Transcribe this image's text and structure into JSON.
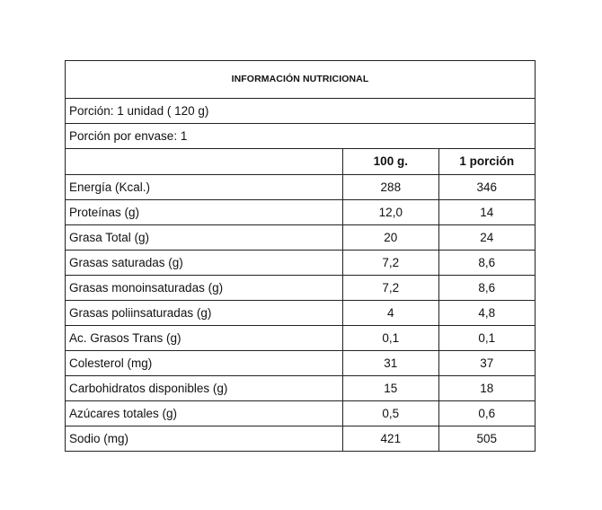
{
  "table": {
    "title": "INFORMACIÓN NUTRICIONAL",
    "portion": "Porción: 1 unidad ( 120 g)",
    "portions_per_package": "Porción por envase: 1",
    "columns": [
      "100 g.",
      "1 porción"
    ],
    "rows": [
      {
        "name": "Energía (Kcal.)",
        "per100g": "288",
        "perPortion": "346"
      },
      {
        "name": "Proteínas (g)",
        "per100g": "12,0",
        "perPortion": "14"
      },
      {
        "name": "Grasa Total (g)",
        "per100g": "20",
        "perPortion": "24"
      },
      {
        "name": "Grasas saturadas (g)",
        "per100g": "7,2",
        "perPortion": "8,6"
      },
      {
        "name": "Grasas monoinsaturadas (g)",
        "per100g": "7,2",
        "perPortion": "8,6"
      },
      {
        "name": "Grasas poliinsaturadas (g)",
        "per100g": "4",
        "perPortion": "4,8"
      },
      {
        "name": "Ac. Grasos Trans (g)",
        "per100g": "0,1",
        "perPortion": "0,1"
      },
      {
        "name": "Colesterol (mg)",
        "per100g": "31",
        "perPortion": "37"
      },
      {
        "name": "Carbohidratos disponibles (g)",
        "per100g": "15",
        "perPortion": "18"
      },
      {
        "name": "Azúcares totales (g)",
        "per100g": "0,5",
        "perPortion": "0,6"
      },
      {
        "name": "Sodio (mg)",
        "per100g": "421",
        "perPortion": "505"
      }
    ]
  }
}
